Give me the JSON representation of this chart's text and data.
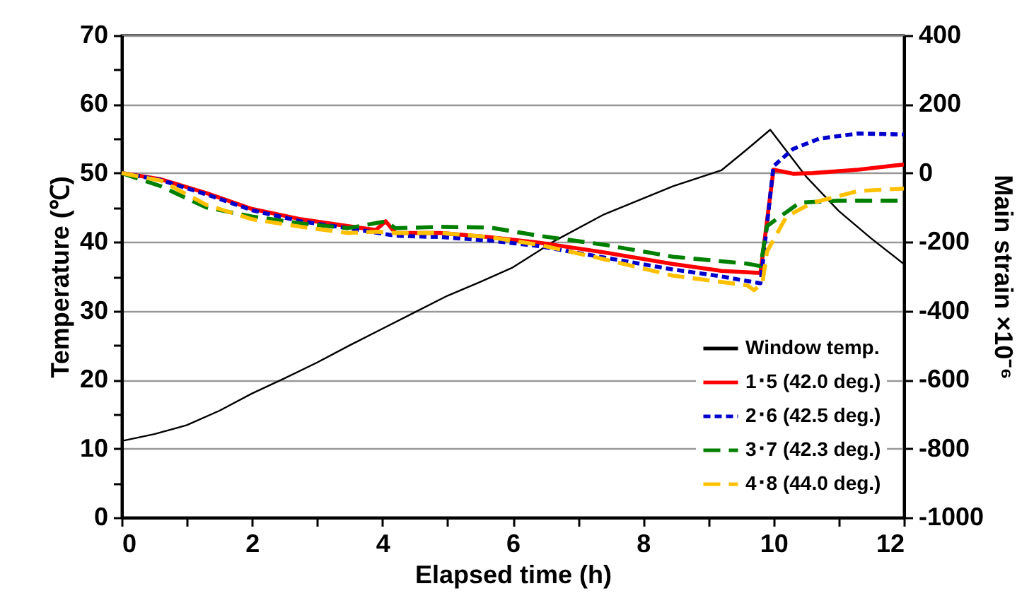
{
  "chart_data": {
    "type": "line",
    "xlabel": "Elapsed time (h)",
    "ylabel": "Temperature (℃)",
    "y2label": "Main strain ×10⁻⁶",
    "xlim": [
      0,
      12
    ],
    "xticks": [
      0,
      {
        "value": 1,
        "label": null
      },
      2,
      {
        "value": 3,
        "label": null
      },
      4,
      {
        "value": 5,
        "label": null
      },
      6,
      {
        "value": 7,
        "label": null
      },
      8,
      {
        "value": 9,
        "label": null
      },
      10,
      {
        "value": 11,
        "label": null
      },
      12
    ],
    "ylim": [
      0,
      70
    ],
    "yticks": [
      0,
      {
        "value": 5,
        "label": null
      },
      10,
      {
        "value": 15,
        "label": null
      },
      20,
      {
        "value": 25,
        "label": null
      },
      30,
      {
        "value": 35,
        "label": null
      },
      40,
      {
        "value": 45,
        "label": null
      },
      50,
      {
        "value": 55,
        "label": null
      },
      60,
      {
        "value": 65,
        "label": null
      },
      70
    ],
    "y2lim": [
      -1000,
      400
    ],
    "y2ticks": [
      -1000,
      -800,
      -600,
      -400,
      -200,
      0,
      200,
      400
    ],
    "grid": "y",
    "legend": "bottom right",
    "marker": "none",
    "series": [
      {
        "name": "Window temp.",
        "color": "#000000",
        "line_style": "solid",
        "x": [
          0,
          0.5,
          1,
          1.5,
          2,
          2.5,
          3,
          3.5,
          4,
          4.5,
          5,
          5.5,
          6,
          6.65,
          7.4,
          8.46,
          9.2,
          9.6,
          9.95,
          10.5,
          11,
          11.5,
          12
        ],
        "values": [
          11.1,
          12.1,
          13.4,
          15.5,
          18.0,
          20.2,
          22.5,
          25,
          27.4,
          29.8,
          32.2,
          34.2,
          36.3,
          40.2,
          44,
          48.1,
          50.4,
          53.5,
          56.3,
          49.5,
          44.5,
          40.5,
          36.8
        ]
      },
      {
        "name": "1･5 (42.0 deg.)",
        "color": "#ff0000",
        "line_style": "solid",
        "axis": "y2",
        "x": [
          0,
          0.6,
          1.3,
          2.0,
          2.75,
          3.47,
          3.9,
          4.05,
          4.2,
          4.9,
          5.65,
          6.4,
          7.4,
          8.46,
          9.2,
          9.8,
          10.0,
          10.3,
          10.6,
          11.3,
          12
        ],
        "values": [
          0,
          -18,
          -58,
          -104,
          -134,
          -154,
          -165,
          -140,
          -174,
          -174,
          -186,
          -202,
          -230,
          -264,
          -284,
          -290,
          10,
          -2,
          0,
          10,
          25
        ]
      },
      {
        "name": "2･6 (42.5 deg.)",
        "color": "#0000cc",
        "line_style": "dotted",
        "axis": "y2",
        "x": [
          0,
          0.6,
          1.3,
          2.0,
          2.75,
          3.47,
          4.2,
          4.9,
          5.65,
          6.4,
          7.4,
          8.46,
          9.2,
          9.8,
          10.0,
          10.3,
          10.7,
          11.3,
          12
        ],
        "values": [
          0,
          -20,
          -62,
          -108,
          -140,
          -160,
          -182,
          -186,
          -196,
          -212,
          -245,
          -280,
          -300,
          -320,
          20,
          70,
          100,
          115,
          112
        ]
      },
      {
        "name": "3･7 (42.3 deg.)",
        "color": "#008000",
        "line_style": "dashed",
        "axis": "y2",
        "x": [
          0,
          0.6,
          1.3,
          2.0,
          2.75,
          3.47,
          4.05,
          4.2,
          4.9,
          5.65,
          6.4,
          7.4,
          8.46,
          9.6,
          9.8,
          9.9,
          10.2,
          10.4,
          11,
          12
        ],
        "values": [
          0,
          -38,
          -100,
          -126,
          -146,
          -160,
          -140,
          -160,
          -156,
          -158,
          -182,
          -208,
          -243,
          -263,
          -270,
          -154,
          -113,
          -86,
          -80,
          -80
        ]
      },
      {
        "name": "4･8 (44.0 deg.)",
        "color": "#ffc000",
        "line_style": "dashed",
        "axis": "y2",
        "x": [
          0,
          0.6,
          1.3,
          2.0,
          2.75,
          3.47,
          3.9,
          4.2,
          4.9,
          5.65,
          6.4,
          7.4,
          8.46,
          9.6,
          9.7,
          9.83,
          9.9,
          10.2,
          10.6,
          11.3,
          12
        ],
        "values": [
          0,
          -22,
          -92,
          -134,
          -156,
          -174,
          -170,
          -174,
          -174,
          -186,
          -208,
          -250,
          -298,
          -326,
          -340,
          -320,
          -228,
          -126,
          -86,
          -52,
          -45
        ]
      }
    ]
  }
}
